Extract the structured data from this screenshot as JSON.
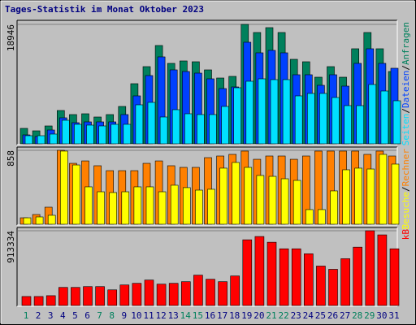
{
  "title": "Tages-Statistik im Monat Oktober 2023",
  "legend_separator": "/",
  "chart_data": [
    {
      "type": "bar",
      "ylim": [
        0,
        18946
      ],
      "yticks": [
        18946
      ],
      "series": [
        {
          "name": "Anfragen",
          "color": "#00805c",
          "values": [
            2449,
            2062,
            2836,
            5285,
            4640,
            4769,
            4254,
            4640,
            5929,
            9538,
            12245,
            15596,
            12761,
            13147,
            13018,
            11729,
            10440,
            10698,
            18946,
            17658,
            18432,
            17658,
            13405,
            13018,
            10569,
            12245,
            10569,
            15081,
            17658,
            15081,
            11472
          ]
        },
        {
          "name": "Dateien",
          "color": "#0040ff",
          "values": [
            1418,
            1160,
            2191,
            4125,
            3351,
            3480,
            3480,
            3480,
            4640,
            7605,
            10827,
            13792,
            11730,
            11472,
            11214,
            10312,
            8765,
            9023,
            16112,
            14436,
            14823,
            14436,
            10956,
            10956,
            9281,
            10956,
            9152,
            12761,
            15081,
            12761,
            11988
          ]
        },
        {
          "name": "Seiten",
          "color": "#00e0ff",
          "values": [
            1289,
            1289,
            1547,
            3738,
            3094,
            2965,
            2836,
            3094,
            3094,
            6187,
            6574,
            4254,
            5414,
            4769,
            4640,
            4640,
            5929,
            8894,
            9925,
            10312,
            10183,
            10183,
            7605,
            7992,
            7992,
            7347,
            6058,
            6058,
            9410,
            8378,
            6832
          ]
        }
      ]
    },
    {
      "type": "bar",
      "ylim": [
        0,
        858
      ],
      "yticks": [
        858
      ],
      "series": [
        {
          "name": "Rechner",
          "color": "#ff8000",
          "values": [
            75,
            113,
            198,
            858,
            707,
            735,
            679,
            622,
            622,
            622,
            707,
            735,
            679,
            660,
            660,
            773,
            792,
            811,
            849,
            754,
            792,
            792,
            754,
            792,
            849,
            849,
            849,
            849,
            811,
            849,
            792
          ]
        },
        {
          "name": "Besuche",
          "color": "#ffff00",
          "values": [
            75,
            85,
            104,
            849,
            688,
            434,
            377,
            368,
            377,
            434,
            434,
            377,
            453,
            425,
            396,
            406,
            651,
            717,
            660,
            566,
            556,
            528,
            509,
            170,
            170,
            387,
            632,
            651,
            641,
            811,
            698
          ]
        }
      ]
    },
    {
      "type": "bar",
      "ylim": [
        0,
        913334
      ],
      "yticks": [
        913334
      ],
      "categories": [
        "1",
        "2",
        "3",
        "4",
        "5",
        "6",
        "7",
        "8",
        "9",
        "10",
        "11",
        "12",
        "13",
        "14",
        "15",
        "16",
        "17",
        "18",
        "19",
        "20",
        "21",
        "22",
        "23",
        "24",
        "25",
        "26",
        "27",
        "28",
        "29",
        "30",
        "31"
      ],
      "category_colors": [
        "#00805c",
        "#000080",
        "#000080",
        "#000080",
        "#000080",
        "#000080",
        "#00805c",
        "#00805c",
        "#000080",
        "#000080",
        "#000080",
        "#000080",
        "#000080",
        "#00805c",
        "#00805c",
        "#000080",
        "#000080",
        "#000080",
        "#000080",
        "#000080",
        "#00805c",
        "#00805c",
        "#000080",
        "#000080",
        "#000080",
        "#000080",
        "#000080",
        "#00805c",
        "#00805c",
        "#000080",
        "#000080"
      ],
      "series": [
        {
          "name": "kB",
          "color": "#ff0000",
          "values": [
            110000,
            110000,
            120000,
            221000,
            221000,
            231000,
            231000,
            191000,
            251000,
            271000,
            311000,
            261000,
            271000,
            291000,
            371000,
            321000,
            291000,
            361000,
            803000,
            843000,
            773000,
            693000,
            693000,
            632000,
            482000,
            442000,
            572000,
            713000,
            913334,
            863000,
            693000
          ]
        }
      ]
    }
  ]
}
